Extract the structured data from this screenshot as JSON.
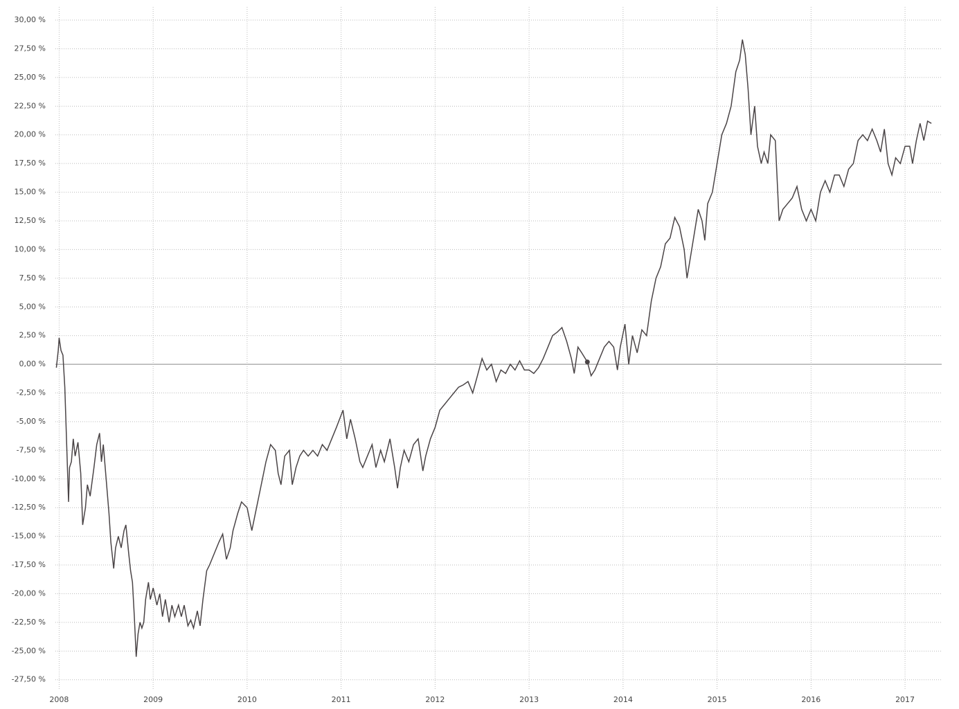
{
  "chart_data": {
    "type": "line",
    "xlim": [
      2007.96,
      2017.39
    ],
    "xticks": [
      2008,
      2009,
      2010,
      2011,
      2012,
      2013,
      2014,
      2015,
      2016,
      2017
    ],
    "ylim": [
      -28.3,
      31.15
    ],
    "yticks": [
      {
        "value": -27.5,
        "label": "-27,50 %"
      },
      {
        "value": -25,
        "label": "-25,00 %"
      },
      {
        "value": -22.5,
        "label": "-22,50 %"
      },
      {
        "value": -20,
        "label": "-20,00 %"
      },
      {
        "value": -17.5,
        "label": "-17,50 %"
      },
      {
        "value": -15,
        "label": "-15,00 %"
      },
      {
        "value": -12.5,
        "label": "-12,50 %"
      },
      {
        "value": -10,
        "label": "-10,00 %"
      },
      {
        "value": -7.5,
        "label": "-7,50 %"
      },
      {
        "value": -5,
        "label": "-5,00 %"
      },
      {
        "value": -2.5,
        "label": "-2,50 %"
      },
      {
        "value": 0,
        "label": "0,00 %"
      },
      {
        "value": 2.5,
        "label": "2,50 %"
      },
      {
        "value": 5,
        "label": "5,00 %"
      },
      {
        "value": 7.5,
        "label": "7,50 %"
      },
      {
        "value": 10,
        "label": "10,00 %"
      },
      {
        "value": 12.5,
        "label": "12,50 %"
      },
      {
        "value": 15,
        "label": "15,00 %"
      },
      {
        "value": 17.5,
        "label": "17,50 %"
      },
      {
        "value": 20,
        "label": "20,00 %"
      },
      {
        "value": 22.5,
        "label": "22,50 %"
      },
      {
        "value": 25,
        "label": "25,00 %"
      },
      {
        "value": 27.5,
        "label": "27,50 %"
      },
      {
        "value": 30,
        "label": "30,00 %"
      }
    ],
    "grid": true,
    "color": "#4a4446",
    "x": [
      2007.97,
      2007.99,
      2008.0,
      2008.02,
      2008.04,
      2008.06,
      2008.08,
      2008.1,
      2008.11,
      2008.13,
      2008.15,
      2008.17,
      2008.2,
      2008.23,
      2008.25,
      2008.28,
      2008.3,
      2008.33,
      2008.37,
      2008.4,
      2008.43,
      2008.45,
      2008.47,
      2008.5,
      2008.53,
      2008.55,
      2008.58,
      2008.6,
      2008.63,
      2008.66,
      2008.69,
      2008.71,
      2008.74,
      2008.76,
      2008.78,
      2008.8,
      2008.82,
      2008.84,
      2008.86,
      2008.88,
      2008.9,
      2008.92,
      2008.95,
      2008.97,
      2009.0,
      2009.04,
      2009.07,
      2009.1,
      2009.13,
      2009.17,
      2009.2,
      2009.23,
      2009.27,
      2009.3,
      2009.33,
      2009.37,
      2009.4,
      2009.43,
      2009.47,
      2009.5,
      2009.53,
      2009.57,
      2009.6,
      2009.65,
      2009.7,
      2009.74,
      2009.78,
      2009.82,
      2009.85,
      2009.9,
      2009.94,
      2010.0,
      2010.05,
      2010.1,
      2010.15,
      2010.2,
      2010.25,
      2010.3,
      2010.33,
      2010.36,
      2010.4,
      2010.45,
      2010.48,
      2010.52,
      2010.56,
      2010.6,
      2010.65,
      2010.7,
      2010.75,
      2010.8,
      2010.85,
      2010.9,
      2010.95,
      2011.02,
      2011.06,
      2011.1,
      2011.15,
      2011.2,
      2011.23,
      2011.28,
      2011.33,
      2011.37,
      2011.42,
      2011.46,
      2011.52,
      2011.57,
      2011.6,
      2011.63,
      2011.67,
      2011.72,
      2011.77,
      2011.82,
      2011.87,
      2011.9,
      2011.95,
      2012.0,
      2012.05,
      2012.1,
      2012.15,
      2012.2,
      2012.25,
      2012.3,
      2012.35,
      2012.4,
      2012.45,
      2012.5,
      2012.55,
      2012.6,
      2012.65,
      2012.7,
      2012.75,
      2012.8,
      2012.85,
      2012.9,
      2012.95,
      2013.0,
      2013.05,
      2013.1,
      2013.15,
      2013.2,
      2013.25,
      2013.3,
      2013.35,
      2013.4,
      2013.45,
      2013.48,
      2013.52,
      2013.56,
      2013.62,
      2013.66,
      2013.7,
      2013.75,
      2013.8,
      2013.85,
      2013.9,
      2013.94,
      2013.97,
      2014.02,
      2014.06,
      2014.1,
      2014.15,
      2014.2,
      2014.25,
      2014.3,
      2014.35,
      2014.4,
      2014.45,
      2014.5,
      2014.55,
      2014.6,
      2014.65,
      2014.68,
      2014.72,
      2014.76,
      2014.8,
      2014.84,
      2014.87,
      2014.9,
      2014.95,
      2015.0,
      2015.05,
      2015.1,
      2015.15,
      2015.2,
      2015.24,
      2015.27,
      2015.3,
      2015.33,
      2015.36,
      2015.4,
      2015.43,
      2015.47,
      2015.5,
      2015.54,
      2015.57,
      2015.62,
      2015.66,
      2015.7,
      2015.75,
      2015.8,
      2015.85,
      2015.9,
      2015.95,
      2016.0,
      2016.05,
      2016.1,
      2016.15,
      2016.2,
      2016.25,
      2016.3,
      2016.35,
      2016.4,
      2016.45,
      2016.5,
      2016.55,
      2016.6,
      2016.65,
      2016.7,
      2016.74,
      2016.78,
      2016.82,
      2016.86,
      2016.9,
      2016.95,
      2017.0,
      2017.05,
      2017.08,
      2017.12,
      2017.16,
      2017.2,
      2017.24,
      2017.28
    ],
    "values": [
      -0.3,
      1.2,
      2.3,
      1.2,
      0.8,
      -2,
      -7,
      -12,
      -9,
      -8.5,
      -6.5,
      -8,
      -6.8,
      -9.5,
      -14,
      -12.5,
      -10.5,
      -11.5,
      -9,
      -7,
      -6,
      -8.5,
      -7,
      -10,
      -13,
      -15.5,
      -17.8,
      -16,
      -15,
      -16,
      -14.5,
      -14,
      -16.5,
      -18,
      -19,
      -22,
      -25.5,
      -23.5,
      -22.5,
      -23,
      -22.5,
      -20.5,
      -19,
      -20.5,
      -19.5,
      -21,
      -20,
      -22,
      -20.5,
      -22.5,
      -21,
      -22,
      -21,
      -22,
      -21,
      -22.8,
      -22.3,
      -23,
      -21.5,
      -22.8,
      -20.5,
      -18,
      -17.5,
      -16.5,
      -15.5,
      -14.8,
      -17,
      -16,
      -14.5,
      -13,
      -12,
      -12.5,
      -14.5,
      -12.5,
      -10.5,
      -8.5,
      -7,
      -7.5,
      -9.5,
      -10.5,
      -8,
      -7.5,
      -10.5,
      -9,
      -8,
      -7.5,
      -8,
      -7.5,
      -8,
      -7,
      -7.5,
      -6.5,
      -5.5,
      -4,
      -6.5,
      -4.8,
      -6.5,
      -8.5,
      -9,
      -8,
      -7,
      -9,
      -7.5,
      -8.5,
      -6.5,
      -9,
      -10.8,
      -9,
      -7.5,
      -8.5,
      -7,
      -6.5,
      -9.3,
      -8,
      -6.5,
      -5.5,
      -4,
      -3.5,
      -3,
      -2.5,
      -2,
      -1.8,
      -1.5,
      -2.5,
      -1,
      0.5,
      -0.5,
      0,
      -1.5,
      -0.5,
      -0.8,
      0,
      -0.5,
      0.3,
      -0.5,
      -0.5,
      -0.8,
      -0.3,
      0.5,
      1.5,
      2.5,
      2.8,
      3.2,
      2,
      0.5,
      -0.8,
      1.5,
      1,
      0.2,
      -1,
      -0.5,
      0.5,
      1.5,
      2,
      1.5,
      -0.5,
      1.5,
      3.5,
      0,
      2.5,
      1,
      3,
      2.5,
      5.5,
      7.5,
      8.5,
      10.5,
      11,
      12.8,
      12,
      10,
      7.5,
      9.5,
      11.5,
      13.5,
      12.5,
      10.8,
      14,
      15,
      17.5,
      20,
      21,
      22.5,
      25.5,
      26.5,
      28.3,
      27,
      24,
      20,
      22.5,
      19,
      17.5,
      18.5,
      17.5,
      20,
      19.5,
      12.5,
      13.5,
      14,
      14.5,
      15.5,
      13.5,
      12.5,
      13.5,
      12.5,
      15,
      16,
      15,
      16.5,
      16.5,
      15.5,
      17,
      17.5,
      19.5,
      20,
      19.5,
      20.5,
      19.5,
      18.5,
      20.5,
      17.5,
      16.5,
      18,
      17.5,
      19,
      19,
      17.5,
      19.5,
      21,
      19.5,
      21.2,
      21
    ],
    "marker": {
      "x": 2013.62,
      "y": 0.2
    }
  }
}
